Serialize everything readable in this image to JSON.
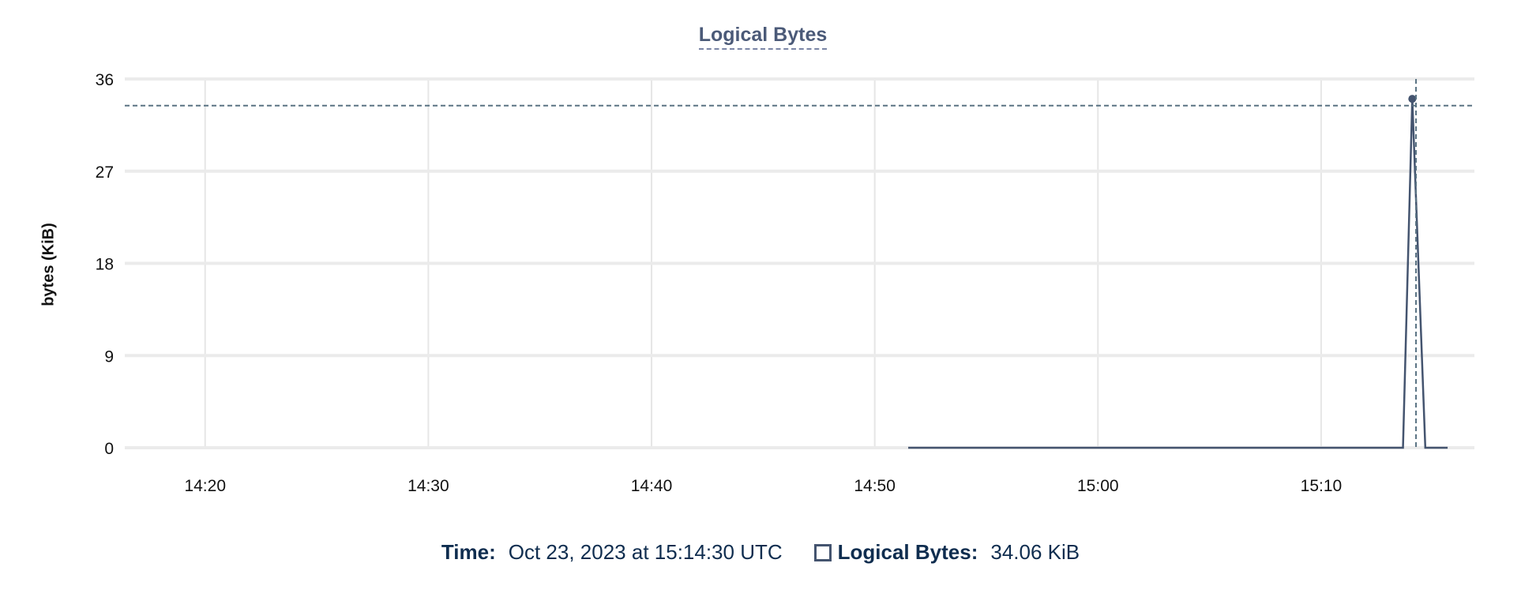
{
  "chart_data": {
    "type": "line",
    "title": "Logical Bytes",
    "ylabel": "bytes (KiB)",
    "xlabel": "",
    "ylim": [
      0,
      36
    ],
    "yticks": [
      0,
      9,
      18,
      27,
      36
    ],
    "xlim": [
      "14:16:24",
      "15:16:52"
    ],
    "xticks": [
      "14:20",
      "14:30",
      "14:40",
      "14:50",
      "15:00",
      "15:10"
    ],
    "grid": true,
    "series": [
      {
        "name": "Logical Bytes",
        "color": "#44546f",
        "points": [
          {
            "x": "14:51:30",
            "y": 0
          },
          {
            "x": "15:13:40",
            "y": 0
          },
          {
            "x": "15:14:05",
            "y": 34.06
          },
          {
            "x": "15:14:40",
            "y": 0
          },
          {
            "x": "15:15:40",
            "y": 0
          }
        ]
      }
    ],
    "hover": {
      "x": "15:14:15",
      "y": 33.4,
      "color": "#5a7383"
    }
  },
  "legend": {
    "time_label": "Time:",
    "time_value": "Oct 23, 2023 at 15:14:30 UTC",
    "series_label": "Logical Bytes:",
    "series_value": "34.06 KiB"
  }
}
